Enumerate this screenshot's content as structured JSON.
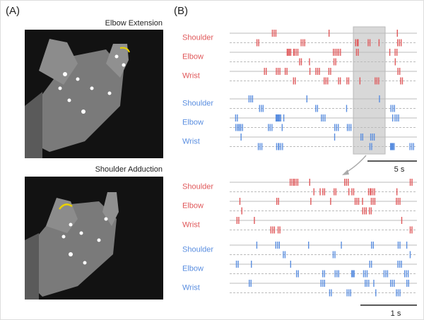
{
  "panel_a": {
    "label": "(A)",
    "images": [
      {
        "title": "Elbow Extension"
      },
      {
        "title": "Shoulder Adduction"
      }
    ]
  },
  "panel_b": {
    "label": "(B)",
    "colors": {
      "forelimb": "#e0585a",
      "hindlimb": "#5a8ee0"
    },
    "top": {
      "rows": [
        {
          "label": "Shoulder",
          "group": "forelimb"
        },
        {
          "label": "Elbow",
          "group": "forelimb"
        },
        {
          "label": "Wrist",
          "group": "forelimb"
        },
        {
          "label": "Shoulder",
          "group": "hindlimb"
        },
        {
          "label": "Elbow",
          "group": "hindlimb"
        },
        {
          "label": "Wrist",
          "group": "hindlimb"
        }
      ],
      "scale_bar": "5 s"
    },
    "bottom": {
      "rows": [
        {
          "label": "Shoulder",
          "group": "forelimb"
        },
        {
          "label": "Elbow",
          "group": "forelimb"
        },
        {
          "label": "Wrist",
          "group": "forelimb"
        },
        {
          "label": "Shoulder",
          "group": "hindlimb"
        },
        {
          "label": "Elbow",
          "group": "hindlimb"
        },
        {
          "label": "Wrist",
          "group": "hindlimb"
        }
      ],
      "scale_bar": "1 s"
    }
  }
}
